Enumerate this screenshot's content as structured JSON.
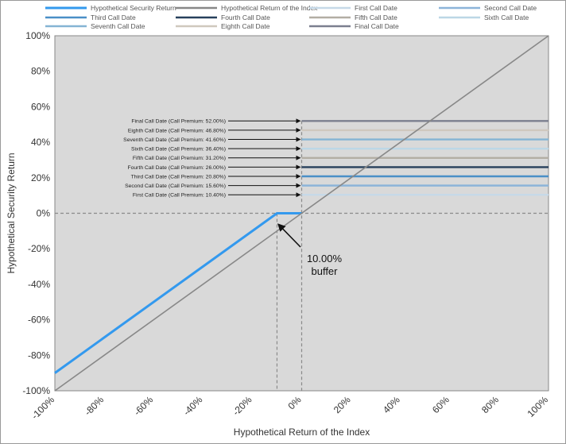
{
  "chart_data": {
    "type": "line",
    "xlabel": "Hypothetical Return of the Index",
    "ylabel": "Hypothetical Security Return",
    "xlim": [
      -100,
      100
    ],
    "ylim": [
      -100,
      100
    ],
    "x_ticks": [
      "-100%",
      "-80%",
      "-60%",
      "-40%",
      "-20%",
      "0%",
      "20%",
      "40%",
      "60%",
      "80%",
      "100%"
    ],
    "y_ticks": [
      "100%",
      "80%",
      "60%",
      "40%",
      "20%",
      "0%",
      "-20%",
      "-40%",
      "-60%",
      "-80%",
      "-100%"
    ],
    "plot_background": "#d9d9d9",
    "series": [
      {
        "name": "Hypothetical Security Return",
        "color": "#3399ee",
        "width": 3,
        "points": [
          [
            -100,
            -90
          ],
          [
            -10,
            0
          ],
          [
            0,
            0
          ]
        ]
      },
      {
        "name": "Hypothetical Return of the Index",
        "color": "#888888",
        "width": 1.6,
        "points": [
          [
            -100,
            -100
          ],
          [
            100,
            100
          ]
        ]
      },
      {
        "name": "First Call Date",
        "color": "#c6d9e8",
        "level": 10.4
      },
      {
        "name": "Second Call Date",
        "color": "#8cb4d9",
        "level": 15.6
      },
      {
        "name": "Third Call Date",
        "color": "#4a8fc7",
        "level": 20.8
      },
      {
        "name": "Fourth Call Date",
        "color": "#27405c",
        "level": 26.0
      },
      {
        "name": "Fifth Call Date",
        "color": "#b3aea4",
        "level": 31.2
      },
      {
        "name": "Sixth Call Date",
        "color": "#bcd7e6",
        "level": 36.4
      },
      {
        "name": "Seventh Call Date",
        "color": "#85b4d4",
        "level": 41.6
      },
      {
        "name": "Eighth Call Date",
        "color": "#cfc8be",
        "level": 46.8
      },
      {
        "name": "Final Call Date",
        "color": "#7b7f8f",
        "level": 52.0
      }
    ],
    "annotations": [
      {
        "text": "Final Call Date (Call Premium: 52.00%)",
        "y": 52.0
      },
      {
        "text": "Eighth Call Date (Call Premium: 46.80%)",
        "y": 46.8
      },
      {
        "text": "Seventh Call Date (Call Premium: 41.60%)",
        "y": 41.6
      },
      {
        "text": "Sixth Call Date (Call Premium: 36.40%)",
        "y": 36.4
      },
      {
        "text": "Fifth Call Date (Call Premium: 31.20%)",
        "y": 31.2
      },
      {
        "text": "Fourth Call Date (Call Premium: 26.00%)",
        "y": 26.0
      },
      {
        "text": "Third Call Date (Call Premium: 20.80%)",
        "y": 20.8
      },
      {
        "text": "Second Call Date (Call Premium: 15.60%)",
        "y": 15.6
      },
      {
        "text": "First Call Date (Call Premium: 10.40%)",
        "y": 10.4
      }
    ],
    "buffer": {
      "lines": [
        "10.00%",
        "buffer"
      ],
      "x": -10
    },
    "legend": {
      "placement": "top",
      "rows": [
        [
          "Hypothetical Security Return",
          "Hypothetical Return of the Index",
          "First Call Date",
          "Second Call Date"
        ],
        [
          "Third Call Date",
          "Fourth Call Date",
          "Fifth Call Date",
          "Sixth Call Date"
        ],
        [
          "Seventh Call Date",
          "Eighth Call Date",
          "Final Call Date"
        ]
      ]
    }
  }
}
